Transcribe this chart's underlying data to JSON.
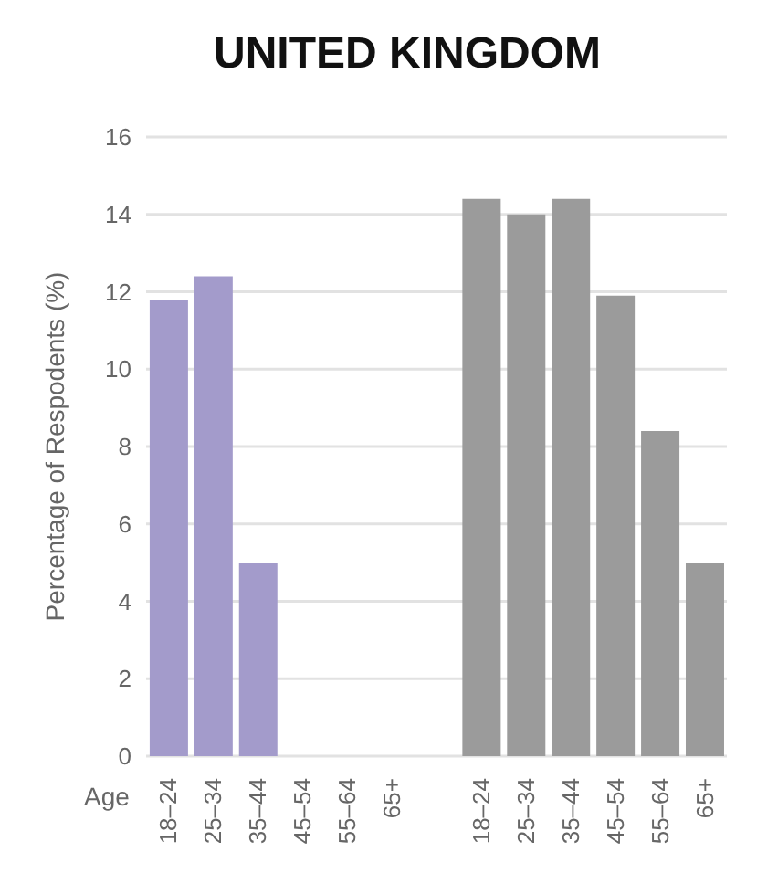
{
  "chart_data": {
    "type": "bar",
    "title": "UNITED KINGDOM",
    "xlabel": "Age",
    "ylabel": "Percentage of Respodents (%)",
    "categories": [
      "18–24",
      "25–34",
      "35–44",
      "45–54",
      "55–64",
      "65+",
      null,
      "18–24",
      "25–34",
      "35–44",
      "45–54",
      "55–64",
      "65+"
    ],
    "series": [
      {
        "color": "#a39bcb",
        "values": [
          11.8,
          12.4,
          5.0,
          null,
          null,
          null,
          null,
          null,
          null,
          null,
          null,
          null,
          null
        ]
      },
      {
        "color": "#9b9b9b",
        "values": [
          null,
          null,
          null,
          null,
          null,
          null,
          null,
          14.4,
          14.0,
          14.4,
          11.9,
          8.4,
          5.0
        ]
      }
    ],
    "ylim": [
      0,
      16
    ],
    "yticks": [
      0,
      2,
      4,
      6,
      8,
      10,
      12,
      14,
      16
    ],
    "grid": "y",
    "stacked": true,
    "legend": false
  }
}
